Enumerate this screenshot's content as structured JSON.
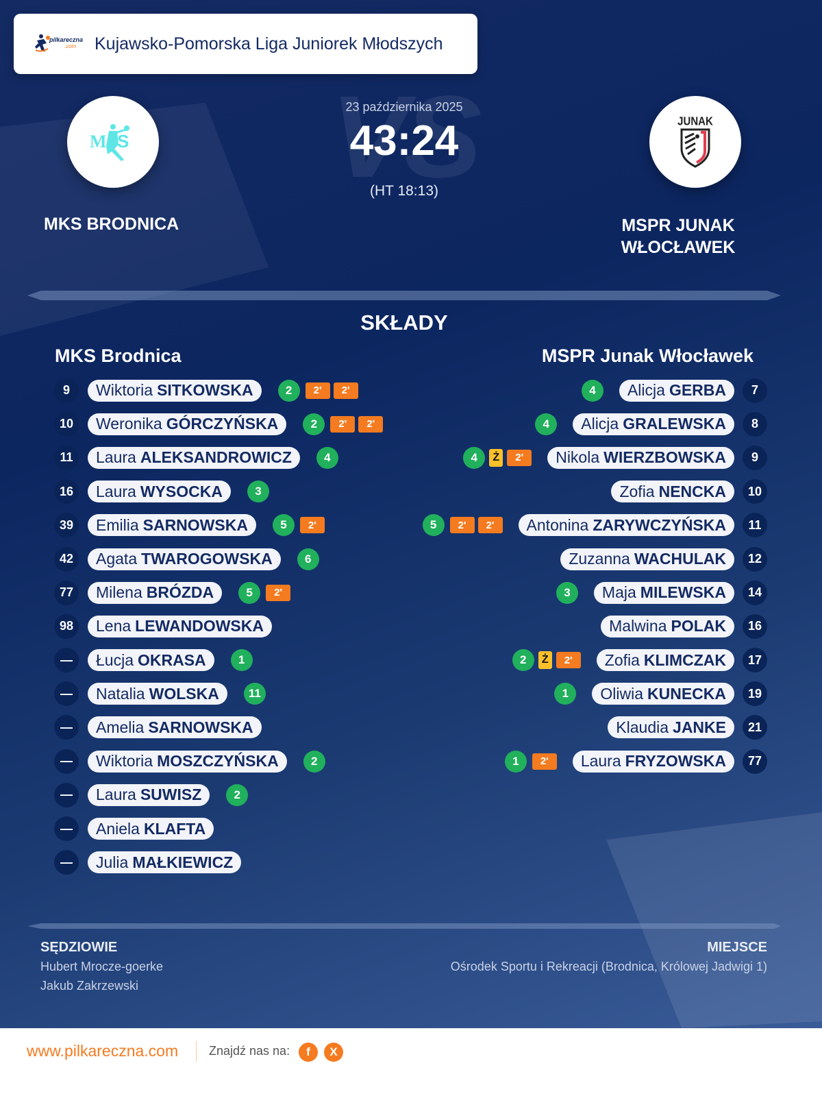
{
  "header": {
    "logo_text": "pilkareczna",
    "logo_suffix": ".com",
    "league": "Kujawsko-Pomorska Liga Juniorek Młodszych"
  },
  "match": {
    "date": "23 października 2025",
    "score": "43:24",
    "halftime": "(HT 18:13)",
    "watermark": "VS"
  },
  "home_team": {
    "name_upper": "MKS BRODNICA",
    "name": "MKS Brodnica",
    "logo_icon": "mks-brodnica-crest",
    "logo_color": "#5ee6e6"
  },
  "away_team": {
    "name_upper_line1": "MSPR JUNAK",
    "name_upper_line2": "WŁOCŁAWEK",
    "name": "MSPR Junak Włocławek",
    "logo_icon": "junak-crest",
    "logo_text": "JUNAK"
  },
  "lineups_title": "SKŁADY",
  "legend": {
    "goal_color": "#21b05c",
    "suspension_label": "2'",
    "suspension_color": "#f47b20",
    "yellow_label": "Ż",
    "yellow_color": "#fcc12a"
  },
  "home_roster": [
    {
      "number": "9",
      "first": "Wiktoria",
      "last": "SITKOWSKA",
      "goals": "2",
      "yellow": false,
      "suspensions": 2
    },
    {
      "number": "10",
      "first": "Weronika",
      "last": "GÓRCZYŃSKA",
      "goals": "2",
      "yellow": false,
      "suspensions": 2
    },
    {
      "number": "11",
      "first": "Laura",
      "last": "ALEKSANDROWICZ",
      "goals": "4",
      "yellow": false,
      "suspensions": 0
    },
    {
      "number": "16",
      "first": "Laura",
      "last": "WYSOCKA",
      "goals": "3",
      "yellow": false,
      "suspensions": 0
    },
    {
      "number": "39",
      "first": "Emilia",
      "last": "SARNOWSKA",
      "goals": "5",
      "yellow": false,
      "suspensions": 1
    },
    {
      "number": "42",
      "first": "Agata",
      "last": "TWAROGOWSKA",
      "goals": "6",
      "yellow": false,
      "suspensions": 0
    },
    {
      "number": "77",
      "first": "Milena",
      "last": "BRÓZDA",
      "goals": "5",
      "yellow": false,
      "suspensions": 1
    },
    {
      "number": "98",
      "first": "Lena",
      "last": "LEWANDOWSKA",
      "goals": null,
      "yellow": false,
      "suspensions": 0
    },
    {
      "number": "—",
      "first": "Łucja",
      "last": "OKRASA",
      "goals": "1",
      "yellow": false,
      "suspensions": 0
    },
    {
      "number": "—",
      "first": "Natalia",
      "last": "WOLSKA",
      "goals": "11",
      "yellow": false,
      "suspensions": 0
    },
    {
      "number": "—",
      "first": "Amelia",
      "last": "SARNOWSKA",
      "goals": null,
      "yellow": false,
      "suspensions": 0
    },
    {
      "number": "—",
      "first": "Wiktoria",
      "last": "MOSZCZYŃSKA",
      "goals": "2",
      "yellow": false,
      "suspensions": 0
    },
    {
      "number": "—",
      "first": "Laura",
      "last": "SUWISZ",
      "goals": "2",
      "yellow": false,
      "suspensions": 0
    },
    {
      "number": "—",
      "first": "Aniela",
      "last": "KLAFTA",
      "goals": null,
      "yellow": false,
      "suspensions": 0
    },
    {
      "number": "—",
      "first": "Julia",
      "last": "MAŁKIEWICZ",
      "goals": null,
      "yellow": false,
      "suspensions": 0
    }
  ],
  "away_roster": [
    {
      "number": "7",
      "first": "Alicja",
      "last": "GERBA",
      "goals": "4",
      "yellow": false,
      "suspensions": 0
    },
    {
      "number": "8",
      "first": "Alicja",
      "last": "GRALEWSKA",
      "goals": "4",
      "yellow": false,
      "suspensions": 0
    },
    {
      "number": "9",
      "first": "Nikola",
      "last": "WIERZBOWSKA",
      "goals": "4",
      "yellow": true,
      "suspensions": 1
    },
    {
      "number": "10",
      "first": "Zofia",
      "last": "NENCKA",
      "goals": null,
      "yellow": false,
      "suspensions": 0
    },
    {
      "number": "11",
      "first": "Antonina",
      "last": "ZARYWCZYŃSKA",
      "goals": "5",
      "yellow": false,
      "suspensions": 2
    },
    {
      "number": "12",
      "first": "Zuzanna",
      "last": "WACHULAK",
      "goals": null,
      "yellow": false,
      "suspensions": 0
    },
    {
      "number": "14",
      "first": "Maja",
      "last": "MILEWSKA",
      "goals": "3",
      "yellow": false,
      "suspensions": 0
    },
    {
      "number": "16",
      "first": "Malwina",
      "last": "POLAK",
      "goals": null,
      "yellow": false,
      "suspensions": 0
    },
    {
      "number": "17",
      "first": "Zofia",
      "last": "KLIMCZAK",
      "goals": "2",
      "yellow": true,
      "suspensions": 1
    },
    {
      "number": "19",
      "first": "Oliwia",
      "last": "KUNECKA",
      "goals": "1",
      "yellow": false,
      "suspensions": 0
    },
    {
      "number": "21",
      "first": "Klaudia",
      "last": "JANKE",
      "goals": null,
      "yellow": false,
      "suspensions": 0
    },
    {
      "number": "77",
      "first": "Laura",
      "last": "FRYZOWSKA",
      "goals": "1",
      "yellow": false,
      "suspensions": 1
    }
  ],
  "officials": {
    "title": "SĘDZIOWIE",
    "names": [
      "Hubert Mrocze-goerke",
      "Jakub Zakrzewski"
    ]
  },
  "venue": {
    "title": "MIEJSCE",
    "text": "Ośrodek Sportu i Rekreacji (Brodnica, Królowej Jadwigi 1)"
  },
  "footer": {
    "url": "www.pilkareczna.com",
    "find_us": "Znajdź nas na:",
    "social": [
      {
        "icon": "facebook-icon",
        "glyph": "f"
      },
      {
        "icon": "x-icon",
        "glyph": "X"
      }
    ]
  }
}
